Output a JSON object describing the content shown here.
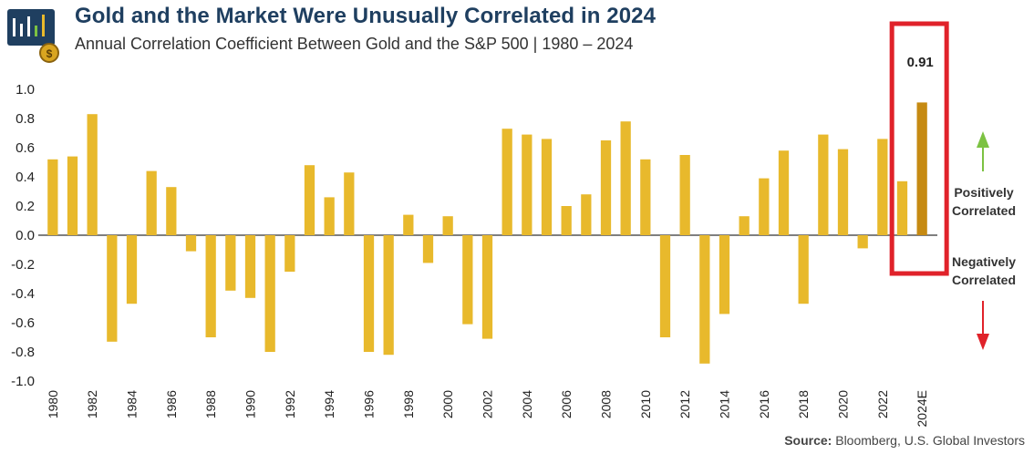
{
  "header": {
    "title": "Gold and the Market Were Unusually Correlated in 2024",
    "subtitle": "Annual Correlation Coefficient Between Gold and the S&P 500 | 1980 – 2024"
  },
  "logo": {
    "icon": "gold-bars-chart-logo"
  },
  "source": {
    "label": "Source:",
    "text": "Bloomberg, U.S. Global Investors"
  },
  "colors": {
    "bar": "#e8b92c",
    "highlight_bar": "#c68a12",
    "highlight_box": "#e0222a",
    "title": "#1f3f60",
    "up_arrow": "#7cc242",
    "down_arrow": "#e0222a"
  },
  "chart_data": {
    "type": "bar",
    "title": "Gold and the Market Were Unusually Correlated in 2024",
    "subtitle": "Annual Correlation Coefficient Between Gold and the S&P 500 | 1980 – 2024",
    "categories": [
      "1980",
      "1981",
      "1982",
      "1983",
      "1984",
      "1985",
      "1986",
      "1987",
      "1988",
      "1989",
      "1990",
      "1991",
      "1992",
      "1993",
      "1994",
      "1995",
      "1996",
      "1997",
      "1998",
      "1999",
      "2000",
      "2001",
      "2002",
      "2003",
      "2004",
      "2005",
      "2006",
      "2007",
      "2008",
      "2009",
      "2010",
      "2011",
      "2012",
      "2013",
      "2014",
      "2015",
      "2016",
      "2017",
      "2018",
      "2019",
      "2020",
      "2021",
      "2022",
      "2023",
      "2024E"
    ],
    "x_tick_labels": [
      "1980",
      "1982",
      "1984",
      "1986",
      "1988",
      "1990",
      "1992",
      "1994",
      "1996",
      "1998",
      "2000",
      "2002",
      "2004",
      "2006",
      "2008",
      "2010",
      "2012",
      "2014",
      "2016",
      "2018",
      "2020",
      "2022",
      "2024E"
    ],
    "values": [
      0.52,
      0.54,
      0.83,
      -0.73,
      -0.47,
      0.44,
      0.33,
      -0.11,
      -0.7,
      -0.38,
      -0.43,
      -0.8,
      -0.25,
      0.48,
      0.26,
      0.43,
      -0.8,
      -0.82,
      0.14,
      -0.19,
      0.13,
      -0.61,
      -0.71,
      0.73,
      0.69,
      0.66,
      0.2,
      0.28,
      0.65,
      0.78,
      0.52,
      -0.7,
      0.55,
      -0.88,
      -0.54,
      0.13,
      0.39,
      0.58,
      -0.47,
      0.69,
      0.59,
      -0.09,
      0.66,
      0.37,
      0.91
    ],
    "highlight": {
      "category": "2024E",
      "label": "0.91"
    },
    "y_ticks": [
      "1.0",
      "0.8",
      "0.6",
      "0.4",
      "0.2",
      "0.0",
      "-0.2",
      "-0.4",
      "-0.6",
      "-0.8",
      "-1.0"
    ],
    "ylim": [
      -1.0,
      1.0
    ],
    "xlabel": "",
    "ylabel": "",
    "annotations": {
      "positive": [
        "Positively",
        "Correlated"
      ],
      "negative": [
        "Negatively",
        "Correlated"
      ]
    }
  }
}
